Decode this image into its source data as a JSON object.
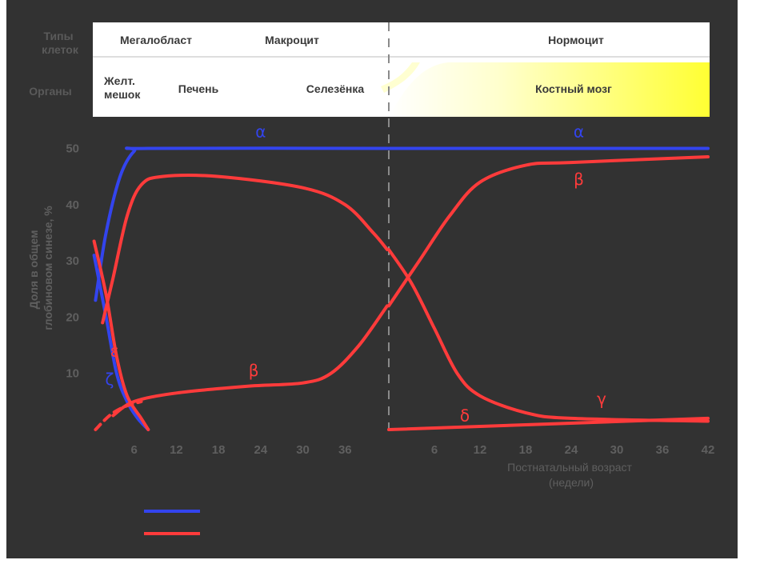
{
  "header_table": {
    "cell_types_label": "Типы клеток",
    "cell_types_label_lines": [
      "Типы",
      "клеток"
    ],
    "organs_label": "Органы",
    "cell_types": [
      "Мегалобласт",
      "Макроцит",
      "Нормоцит"
    ],
    "organs": [
      "Желт. мешок",
      "Печень",
      "Селезёнка",
      "Костный мозг"
    ],
    "yolk_sac_lines": [
      "Желт.",
      "мешок"
    ]
  },
  "colors": {
    "background": "#323232",
    "alpha_family": "#3344ee",
    "beta_family": "#ff3b3b",
    "bone_marrow_gradient": "#ffff33",
    "divider": "#8a8a8a"
  },
  "chart_data": {
    "type": "line",
    "ylabel": "Доля в общем глобиновом синезе, %",
    "ylabel_lines": [
      "Доля в общем",
      "глобиновом синезе, %"
    ],
    "xlabel": "Постнатальный возраст (недели)",
    "xlabel_lines": [
      "Постнатальный возраст",
      "(недели)"
    ],
    "yticks": [
      10,
      20,
      30,
      40,
      50
    ],
    "ylim": [
      0,
      52
    ],
    "x_prenatal_ticks": [
      6,
      12,
      18,
      24,
      30,
      36
    ],
    "x_postnatal_ticks": [
      6,
      12,
      18,
      24,
      30,
      36,
      42
    ],
    "prenatal_weeks": [
      0,
      42
    ],
    "postnatal_weeks": [
      0,
      42
    ],
    "birth_divider": true,
    "grid": false,
    "legend": {
      "position": "bottom-left",
      "items": [
        {
          "color": "#3344ee"
        },
        {
          "color": "#ff3b3b"
        }
      ]
    },
    "series": [
      {
        "name": "α",
        "color": "#3344ee",
        "label_points": [
          {
            "period": "prenatal",
            "week": 24,
            "value": 52
          },
          {
            "period": "postnatal",
            "week": 25,
            "value": 52
          }
        ],
        "prenatal": [
          [
            0.5,
            23
          ],
          [
            2,
            35
          ],
          [
            4,
            45
          ],
          [
            6,
            49.5
          ],
          [
            8,
            50
          ],
          [
            42,
            50
          ]
        ],
        "postnatal": [
          [
            0,
            50
          ],
          [
            42,
            50
          ]
        ]
      },
      {
        "name": "ζ",
        "color": "#3344ee",
        "label_points": [
          {
            "period": "prenatal",
            "week": 2.5,
            "value": 8
          }
        ],
        "prenatal": [
          [
            0.3,
            31
          ],
          [
            2,
            20
          ],
          [
            3.5,
            10
          ],
          [
            5,
            5
          ],
          [
            6.5,
            2
          ],
          [
            8,
            0
          ]
        ],
        "postnatal": []
      },
      {
        "name": "ε",
        "color": "#ff3b3b",
        "label_points": [
          {
            "period": "prenatal",
            "week": 3.2,
            "value": 13
          }
        ],
        "prenatal": [
          [
            0.3,
            33.5
          ],
          [
            2,
            24
          ],
          [
            3.5,
            13
          ],
          [
            5,
            6
          ],
          [
            7,
            2
          ],
          [
            8,
            0
          ]
        ],
        "postnatal": []
      },
      {
        "name": "γ",
        "color": "#ff3b3b",
        "label_points": [
          {
            "period": "postnatal",
            "week": 28,
            "value": 4.5
          }
        ],
        "prenatal": [
          [
            1.5,
            19
          ],
          [
            3,
            27
          ],
          [
            5,
            38
          ],
          [
            7,
            43.5
          ],
          [
            10,
            45
          ],
          [
            18,
            45
          ],
          [
            30,
            43
          ],
          [
            36,
            40
          ],
          [
            40,
            35
          ],
          [
            42,
            32
          ]
        ],
        "postnatal": [
          [
            0,
            32
          ],
          [
            3,
            26
          ],
          [
            6,
            18
          ],
          [
            9,
            10
          ],
          [
            12,
            6
          ],
          [
            18,
            3
          ],
          [
            24,
            2
          ],
          [
            42,
            1.5
          ]
        ]
      },
      {
        "name": "β",
        "color": "#ff3b3b",
        "label_points": [
          {
            "period": "prenatal",
            "week": 23,
            "value": 9.5
          },
          {
            "period": "postnatal",
            "week": 25,
            "value": 43.5
          }
        ],
        "prenatal": [
          [
            3,
            2.5
          ],
          [
            6,
            5
          ],
          [
            12,
            6.5
          ],
          [
            22,
            7.7
          ],
          [
            30,
            8.3
          ],
          [
            34,
            10
          ],
          [
            38,
            15
          ],
          [
            42,
            22
          ]
        ],
        "postnatal": [
          [
            0,
            22
          ],
          [
            4,
            30
          ],
          [
            8,
            38
          ],
          [
            12,
            44
          ],
          [
            18,
            47
          ],
          [
            24,
            47.5
          ],
          [
            42,
            48.5
          ]
        ]
      },
      {
        "name": "δ",
        "color": "#ff3b3b",
        "label_points": [
          {
            "period": "postnatal",
            "week": 10,
            "value": 1.5
          }
        ],
        "prenatal": [],
        "postnatal": [
          [
            0,
            0
          ],
          [
            42,
            2
          ]
        ]
      },
      {
        "name": "",
        "color": "#ff3b3b",
        "dashed": true,
        "prenatal": [
          [
            0.5,
            0
          ],
          [
            2.5,
            2.5
          ],
          [
            4.5,
            4
          ],
          [
            7,
            5
          ]
        ],
        "postnatal": []
      }
    ]
  }
}
